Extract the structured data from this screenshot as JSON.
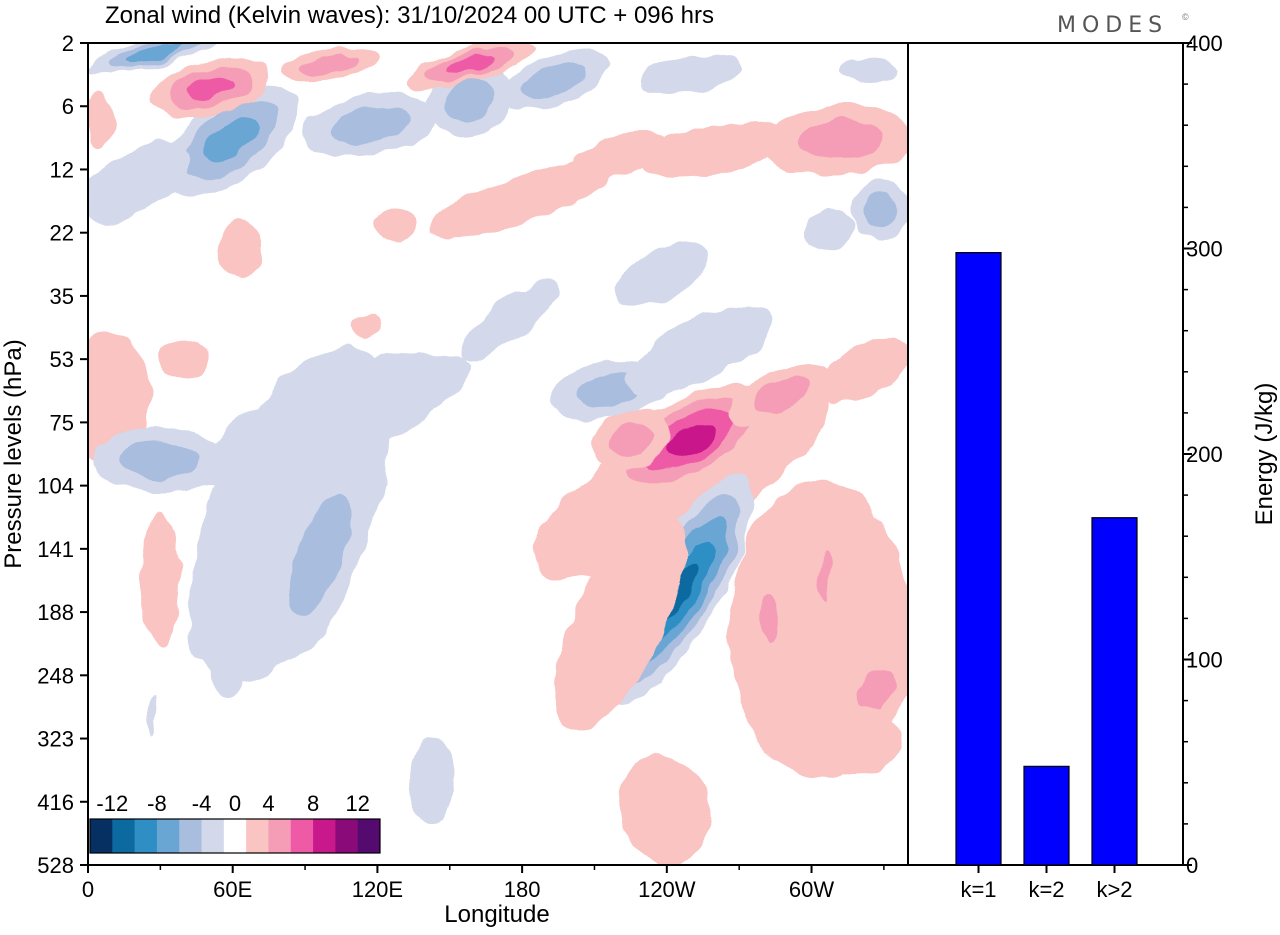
{
  "header": {
    "title": "Zonal wind (Kelvin waves):  31/10/2024  00 UTC  + 096 hrs",
    "brand": "MODES",
    "brand_mark": "©"
  },
  "colors": {
    "bar_fill": "#0000ff",
    "palette": [
      "#053061",
      "#0d6aa0",
      "#2f8fc4",
      "#6aa6d4",
      "#a9bddf",
      "#d3d8ea",
      "#ffffff",
      "#f9c4c1",
      "#f59db7",
      "#ee5aa6",
      "#c9188b",
      "#8b0a79",
      "#540a6e"
    ]
  },
  "chart_data": [
    {
      "type": "heatmap",
      "title": "Zonal wind (Kelvin waves):  31/10/2024  00 UTC  + 096 hrs",
      "xlabel": "Longitude",
      "ylabel": "Pressure levels (hPa)",
      "x_ticks": [
        "0",
        "60E",
        "120E",
        "180",
        "120W",
        "60W"
      ],
      "y_ticks": [
        "2",
        "6",
        "12",
        "22",
        "35",
        "53",
        "75",
        "104",
        "141",
        "188",
        "248",
        "323",
        "416",
        "528"
      ],
      "xlim": [
        0,
        340
      ],
      "colorbar": {
        "labels": [
          "-12",
          "-8",
          "-4",
          "0",
          "4",
          "8",
          "12"
        ],
        "levels": [
          -14,
          -12,
          -10,
          -8,
          -6,
          -4,
          -2,
          2,
          4,
          6,
          8,
          10,
          12,
          14
        ]
      },
      "features": [
        {
          "lon": 20,
          "lev": 2,
          "sign": "easterly",
          "peak": -6
        },
        {
          "lon": 50,
          "lev": 6,
          "sign": "westerly",
          "peak": 8
        },
        {
          "lon": 55,
          "lev": 12,
          "sign": "easterly",
          "peak": -8
        },
        {
          "lon": 115,
          "lev": 3,
          "sign": "westerly",
          "peak": 6
        },
        {
          "lon": 155,
          "lev": 3,
          "sign": "westerly",
          "peak": 8
        },
        {
          "lon": 120,
          "lev": 8,
          "sign": "easterly",
          "peak": -6
        },
        {
          "lon": 295,
          "lev": 10,
          "sign": "westerly",
          "peak": 6
        },
        {
          "lon": 242,
          "lev": 95,
          "sign": "westerly",
          "peak": 10
        },
        {
          "lon": 250,
          "lev": 170,
          "sign": "easterly",
          "peak": -10
        },
        {
          "lon": 85,
          "lev": 160,
          "sign": "easterly",
          "peak": -6
        },
        {
          "lon": 20,
          "lev": 95,
          "sign": "easterly",
          "peak": -5
        },
        {
          "lon": 275,
          "lev": 200,
          "sign": "westerly",
          "peak": 6
        },
        {
          "lon": 330,
          "lev": 260,
          "sign": "westerly",
          "peak": 6
        },
        {
          "lon": 230,
          "lev": 420,
          "sign": "westerly",
          "peak": 4
        },
        {
          "lon": 145,
          "lev": 370,
          "sign": "easterly",
          "peak": -4
        }
      ]
    },
    {
      "type": "bar",
      "categories": [
        "k=1",
        "k=2",
        "k>2"
      ],
      "values": [
        298,
        48,
        169
      ],
      "ylabel": "Energy (J/kg)",
      "ylim": [
        0,
        400
      ],
      "y_ticks": [
        "0",
        "100",
        "200",
        "300",
        "400"
      ]
    }
  ]
}
